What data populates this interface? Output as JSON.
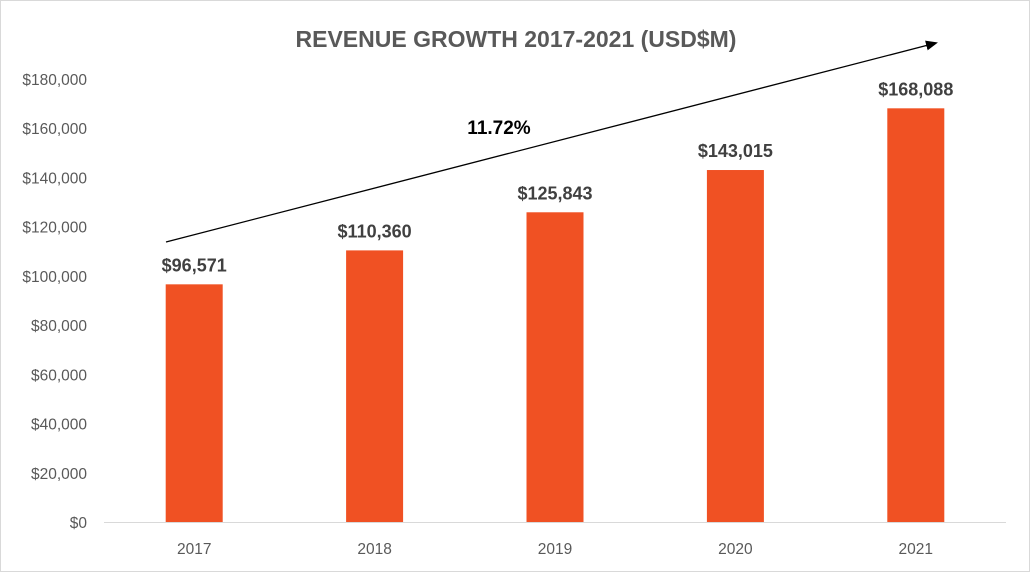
{
  "chart_data": {
    "type": "bar",
    "title": "REVENUE GROWTH 2017-2021 (USD$M)",
    "categories": [
      "2017",
      "2018",
      "2019",
      "2020",
      "2021"
    ],
    "values": [
      96571,
      110360,
      125843,
      143015,
      168088
    ],
    "data_labels": [
      "$96,571",
      "$110,360",
      "$125,843",
      "$143,015",
      "$168,088"
    ],
    "ylim": [
      0,
      180000
    ],
    "yticks": [
      0,
      20000,
      40000,
      60000,
      80000,
      100000,
      120000,
      140000,
      160000,
      180000
    ],
    "ytick_labels": [
      "$0",
      "$20,000",
      "$40,000",
      "$60,000",
      "$80,000",
      "$100,000",
      "$120,000",
      "$140,000",
      "$160,000",
      "$180,000"
    ],
    "xlabel": "",
    "ylabel": "",
    "grid": false,
    "legend": "none",
    "bar_color": "#F05123",
    "annotation": {
      "text": "11.72%",
      "arrow": "trend arrow pointing up-right over bars"
    }
  }
}
